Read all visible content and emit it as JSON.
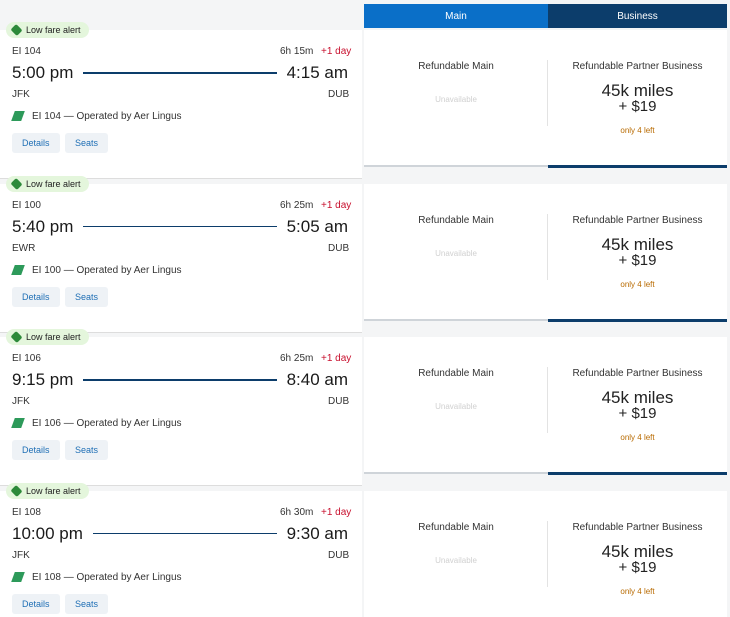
{
  "tabs": [
    "Main",
    "Business"
  ],
  "flights": [
    {
      "badge": "Low fare alert",
      "flight": "EI 104",
      "duration": "6h 15m",
      "day": "+1 day",
      "depart": "5:00 pm",
      "arrive": "4:15 am",
      "from": "JFK",
      "to": "DUB",
      "operated": "EI 104 — Operated by Aer Lingus",
      "buttons": [
        "Details",
        "Seats"
      ],
      "main": {
        "title": "Refundable Main",
        "status": "Unavailable"
      },
      "business": {
        "title": "Refundable Partner Business",
        "miles": "45k miles",
        "cash": "+ $19",
        "seats": "only 4 left"
      }
    },
    {
      "badge": "Low fare alert",
      "flight": "EI 100",
      "duration": "6h 25m",
      "day": "+1 day",
      "depart": "5:40 pm",
      "arrive": "5:05 am",
      "from": "EWR",
      "to": "DUB",
      "operated": "EI 100 — Operated by Aer Lingus",
      "buttons": [
        "Details",
        "Seats"
      ],
      "main": {
        "title": "Refundable Main",
        "status": "Unavailable"
      },
      "business": {
        "title": "Refundable Partner Business",
        "miles": "45k miles",
        "cash": "+ $19",
        "seats": "only 4 left"
      }
    },
    {
      "badge": "Low fare alert",
      "flight": "EI 106",
      "duration": "6h 25m",
      "day": "+1 day",
      "depart": "9:15 pm",
      "arrive": "8:40 am",
      "from": "JFK",
      "to": "DUB",
      "operated": "EI 106 — Operated by Aer Lingus",
      "buttons": [
        "Details",
        "Seats"
      ],
      "main": {
        "title": "Refundable Main",
        "status": "Unavailable"
      },
      "business": {
        "title": "Refundable Partner Business",
        "miles": "45k miles",
        "cash": "+ $19",
        "seats": "only 4 left"
      }
    },
    {
      "badge": "Low fare alert",
      "flight": "EI 108",
      "duration": "6h 30m",
      "day": "+1 day",
      "depart": "10:00 pm",
      "arrive": "9:30 am",
      "from": "JFK",
      "to": "DUB",
      "operated": "EI 108 — Operated by Aer Lingus",
      "buttons": [
        "Details",
        "Seats"
      ],
      "main": {
        "title": "Refundable Main",
        "status": "Unavailable"
      },
      "business": {
        "title": "Refundable Partner Business",
        "miles": "45k miles",
        "cash": "+ $19",
        "seats": "only 4 left"
      }
    }
  ]
}
